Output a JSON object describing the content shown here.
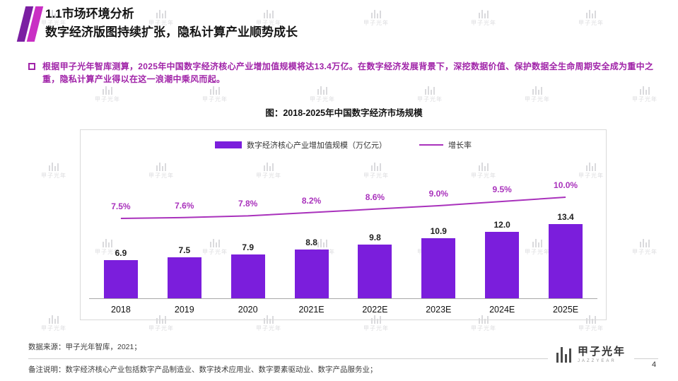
{
  "colors": {
    "bar": "#7B1EDC",
    "line": "#A932BC",
    "accent_dark": "#7B1FA2",
    "accent_bright": "#C92FC4",
    "intro_text": "#A023A8",
    "chart_border": "#D9D9D9"
  },
  "header": {
    "section_title": "1.1市场环境分析",
    "subtitle": "数字经济版图持续扩张，隐私计算产业顺势成长"
  },
  "intro": {
    "text": "根据甲子光年智库测算，2025年中国数字经济核心产业增加值规模将达13.4万亿。在数字经济发展背景下，深挖数据价值、保护数据全生命周期安全成为重中之重，隐私计算产业得以在这一浪潮中乘风而起。"
  },
  "chart_data": {
    "type": "bar+line",
    "title": "图：2018-2025年中国数字经济市场规模",
    "categories": [
      "2018",
      "2019",
      "2020",
      "2021E",
      "2022E",
      "2023E",
      "2024E",
      "2025E"
    ],
    "series": [
      {
        "name": "数字经济核心产业增加值规模（万亿元）",
        "type": "bar",
        "values": [
          6.9,
          7.5,
          7.9,
          8.8,
          9.8,
          10.9,
          12.0,
          13.4
        ],
        "labels": [
          "6.9",
          "7.5",
          "7.9",
          "8.8",
          "9.8",
          "10.9",
          "12.0",
          "13.4"
        ]
      },
      {
        "name": "增长率",
        "type": "line",
        "values": [
          7.5,
          7.6,
          7.8,
          8.2,
          8.6,
          9.0,
          9.5,
          10.0
        ],
        "labels": [
          "7.5%",
          "7.6%",
          "7.8%",
          "8.2%",
          "8.6%",
          "9.0%",
          "9.5%",
          "10.0%"
        ]
      }
    ],
    "legend_position": "top-center",
    "grid": false,
    "y_axis_visible": false
  },
  "footer": {
    "source": "数据来源：甲子光年智库，2021；",
    "note": "备注说明：数字经济核心产业包括数字产品制造业、数字技术应用业、数字要素驱动业、数字产品服务业；",
    "page_number": "4",
    "logo_text": "甲子光年",
    "logo_subtext": "JAZZYEAR"
  },
  "watermark": {
    "text": "甲子光年"
  }
}
